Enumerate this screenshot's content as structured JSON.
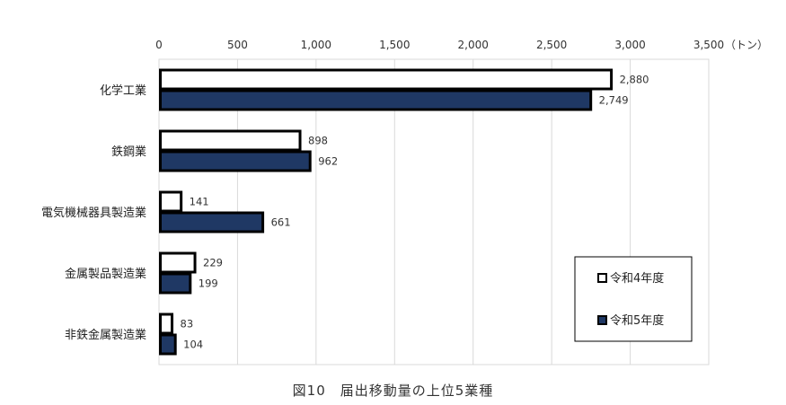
{
  "chart_data": {
    "type": "bar",
    "orientation": "horizontal",
    "categories": [
      "化学工業",
      "鉄鋼業",
      "電気機械器具製造業",
      "金属製品製造業",
      "非鉄金属製造業"
    ],
    "series": [
      {
        "name": "令和4年度",
        "values": [
          2880,
          898,
          141,
          229,
          83
        ],
        "color": "#ffffff"
      },
      {
        "name": "令和5年度",
        "values": [
          2749,
          962,
          661,
          199,
          104
        ],
        "color": "#1f3864"
      }
    ],
    "data_labels": [
      [
        "2,880",
        "898",
        "141",
        "229",
        "83"
      ],
      [
        "2,749",
        "962",
        "661",
        "199",
        "104"
      ]
    ],
    "xlim": [
      0,
      3500
    ],
    "x_ticks": [
      0,
      500,
      1000,
      1500,
      2000,
      2500,
      3000,
      3500
    ],
    "x_tick_labels": [
      "0",
      "500",
      "1,000",
      "1,500",
      "2,000",
      "2,500",
      "3,000",
      "3,500"
    ],
    "x_unit": "（トン）",
    "grid": true,
    "legend_position": "bottom-right",
    "bar_edge_color": "#000000"
  },
  "caption": "図10　届出移動量の上位5業種"
}
